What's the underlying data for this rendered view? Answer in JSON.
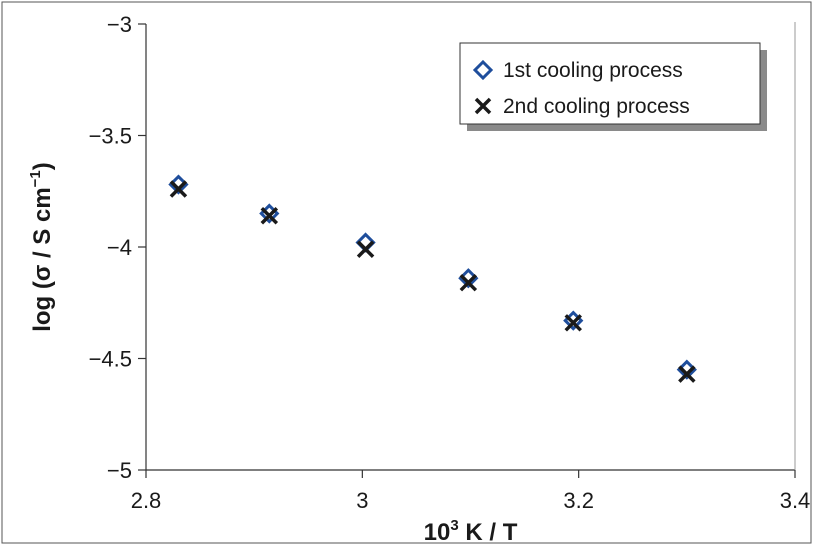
{
  "chart_data": {
    "type": "scatter",
    "xlabel": {
      "base": "10",
      "sup": "3",
      "rest": " K / T"
    },
    "ylabel": {
      "prefix": "log (σ / S cm",
      "sup": "−1",
      "suffix": ")"
    },
    "xlim": [
      2.8,
      3.4
    ],
    "ylim": [
      -5,
      -3
    ],
    "xticks": [
      2.8,
      3.0,
      3.2,
      3.4
    ],
    "xtick_labels": [
      "2.8",
      "3",
      "3.2",
      "3.4"
    ],
    "yticks": [
      -3,
      -3.5,
      -4,
      -4.5,
      -5
    ],
    "ytick_labels": [
      "−3",
      "−3.5",
      "−4",
      "−4.5",
      "−5"
    ],
    "grid": false,
    "legend_position": "top-right",
    "series": [
      {
        "name": "1st cooling process",
        "marker": "diamond",
        "color": "#1f4e9c",
        "x": [
          2.83,
          2.914,
          3.003,
          3.098,
          3.195,
          3.3
        ],
        "y": [
          -3.72,
          -3.85,
          -3.98,
          -4.14,
          -4.33,
          -4.55
        ]
      },
      {
        "name": "2nd cooling process",
        "marker": "x",
        "color": "#1a1a1a",
        "x": [
          2.83,
          2.914,
          3.003,
          3.098,
          3.195,
          3.3
        ],
        "y": [
          -3.74,
          -3.86,
          -4.01,
          -4.16,
          -4.34,
          -4.57
        ]
      }
    ]
  }
}
